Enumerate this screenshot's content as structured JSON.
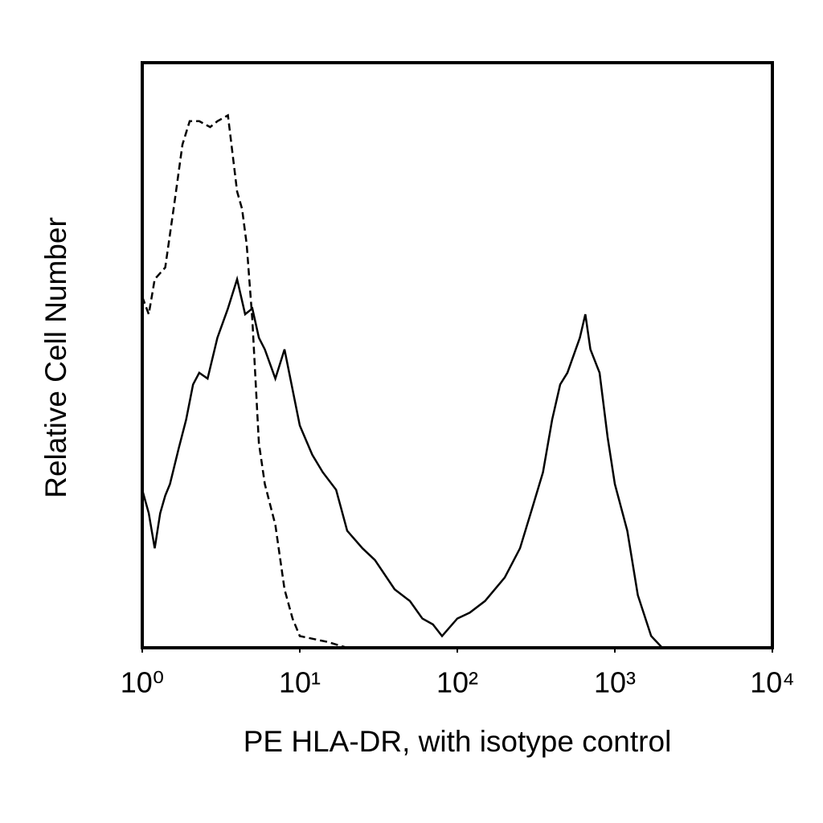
{
  "chart_data": {
    "type": "line",
    "xlabel": "PE HLA-DR, with isotype control",
    "ylabel": "Relative Cell Number",
    "xscale": "log",
    "xlim": [
      1,
      10000
    ],
    "ylim": [
      0,
      100
    ],
    "xticks": [
      {
        "value": 1,
        "label": "10⁰"
      },
      {
        "value": 10,
        "label": "10¹"
      },
      {
        "value": 100,
        "label": "10²"
      },
      {
        "value": 1000,
        "label": "10³"
      },
      {
        "value": 10000,
        "label": "10⁴"
      }
    ],
    "series": [
      {
        "color": "#000000",
        "dash": false,
        "x": [
          1,
          1.1,
          1.2,
          1.3,
          1.4,
          1.5,
          1.7,
          1.9,
          2.1,
          2.3,
          2.6,
          3,
          3.5,
          4,
          4.5,
          5,
          5.5,
          6,
          7,
          8,
          10,
          12,
          14,
          17,
          20,
          25,
          30,
          40,
          50,
          60,
          70,
          80,
          100,
          120,
          150,
          200,
          250,
          300,
          350,
          400,
          450,
          500,
          600,
          650,
          700,
          800,
          900,
          1000,
          1200,
          1400,
          1700,
          2000,
          10000
        ],
        "values": [
          27,
          23,
          17,
          23,
          26,
          28,
          34,
          39,
          45,
          47,
          46,
          53,
          58,
          63,
          57,
          58,
          53,
          51,
          46,
          51,
          38,
          33,
          30,
          27,
          20,
          17,
          15,
          10,
          8,
          5,
          4,
          2,
          5,
          6,
          8,
          12,
          17,
          24,
          30,
          39,
          45,
          47,
          53,
          57,
          51,
          47,
          36,
          28,
          20,
          9,
          2,
          0,
          0
        ]
      },
      {
        "color": "#000000",
        "dash": true,
        "x": [
          1,
          1.1,
          1.2,
          1.4,
          1.6,
          1.8,
          2,
          2.3,
          2.7,
          3,
          3.5,
          4,
          4.3,
          4.6,
          5,
          5.5,
          6,
          7,
          8,
          9,
          10,
          15,
          20,
          10000
        ],
        "values": [
          60,
          57,
          63,
          65,
          76,
          86,
          90,
          90,
          89,
          90,
          91,
          78,
          75,
          69,
          56,
          35,
          28,
          21,
          10,
          5,
          2,
          1,
          0,
          0
        ]
      }
    ]
  }
}
